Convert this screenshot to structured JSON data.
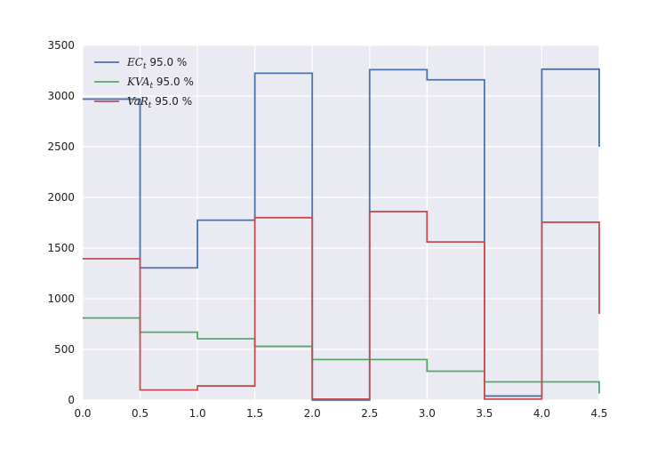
{
  "chart_data": {
    "type": "line",
    "step": "post",
    "x": [
      0.0,
      0.5,
      1.0,
      1.5,
      2.0,
      2.5,
      3.0,
      3.5,
      4.0,
      4.5
    ],
    "xlim": [
      0.0,
      4.5
    ],
    "ylim": [
      0,
      3500
    ],
    "xticks": [
      "0.0",
      "0.5",
      "1.0",
      "1.5",
      "2.0",
      "2.5",
      "3.0",
      "3.5",
      "4.0",
      "4.5"
    ],
    "yticks": [
      "0",
      "500",
      "1000",
      "1500",
      "2000",
      "2500",
      "3000",
      "3500"
    ],
    "grid": true,
    "background": "#EAEAF2",
    "legend_position": "upper-left",
    "series": [
      {
        "name": "EC_t 95.0 %",
        "symbol": "EC",
        "sub": "t",
        "suffix": " 95.0 %",
        "color": "#4C72B0",
        "values": [
          2970,
          1305,
          1775,
          3225,
          0,
          3260,
          3160,
          40,
          3265,
          2500
        ]
      },
      {
        "name": "KVA_t 95.0 %",
        "symbol": "KVA",
        "sub": "t",
        "suffix": " 95.0 %",
        "color": "#55A868",
        "values": [
          810,
          670,
          605,
          530,
          400,
          400,
          285,
          180,
          180,
          65
        ]
      },
      {
        "name": "VaR_t 95.0 %",
        "symbol": "VaR",
        "sub": "t",
        "suffix": " 95.0 %",
        "color": "#C44E52",
        "values": [
          1395,
          100,
          140,
          1800,
          10,
          1860,
          1560,
          10,
          1755,
          850
        ]
      }
    ]
  }
}
